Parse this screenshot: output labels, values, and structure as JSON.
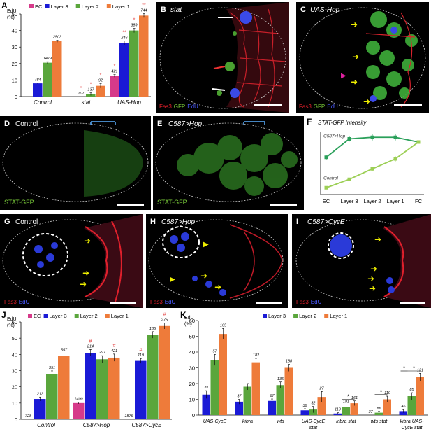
{
  "colors": {
    "ec": "#d63a8a",
    "layer3": "#1a1ad6",
    "layer2": "#5aa63c",
    "layer1": "#ee7b3a",
    "star": "#e23a3a",
    "line_hop": "#2aa05a",
    "line_ctrl": "#9ccf55",
    "fas3": "#e8202c",
    "gfp": "#7acc3a",
    "edu": "#2a3ae8"
  },
  "panels": {
    "A": "A",
    "B": "B",
    "C": "C",
    "D": "D",
    "E": "E",
    "F": "F",
    "G": "G",
    "H": "H",
    "I": "I",
    "J": "J",
    "K": "K"
  },
  "micro": {
    "B_title": "stat",
    "C_title": "UAS-Hop",
    "D_title": "Control",
    "E_title": "C587>Hop",
    "G_title": "Control",
    "H_title": "C587>Hop",
    "I_title": "C587>CycE",
    "stat_gfp": "STAT-GFP",
    "fas3": "Fas3",
    "gfp": "GFP",
    "edu": "EdU"
  },
  "chart_data": [
    {
      "id": "A",
      "type": "bar",
      "ylabel": "EdU",
      "ylabel2": "(%)",
      "ylim": [
        0,
        50
      ],
      "yticks": [
        0,
        10,
        20,
        30,
        40,
        50
      ],
      "categories": [
        "Control",
        "stat",
        "UAS-Hop"
      ],
      "series": [
        {
          "name": "EC",
          "values": [
            null,
            null,
            12.5
          ],
          "n": [
            "",
            "",
            "421"
          ],
          "err": [
            0,
            0,
            0.8
          ],
          "star": [
            "",
            "",
            "*"
          ]
        },
        {
          "name": "Layer 3",
          "values": [
            8,
            0,
            32.5
          ],
          "n": [
            "784",
            "107",
            "246"
          ],
          "err": [
            0.3,
            0,
            1.2
          ],
          "star": [
            "",
            "*",
            "**"
          ]
        },
        {
          "name": "Layer 2",
          "values": [
            20.5,
            1.5,
            40
          ],
          "n": [
            "1479",
            "137",
            "389"
          ],
          "err": [
            0.6,
            0.8,
            1.3
          ],
          "star": [
            "",
            "*",
            "*"
          ]
        },
        {
          "name": "Layer 1",
          "values": [
            33.5,
            6.5,
            49
          ],
          "n": [
            "2503",
            "92",
            "744"
          ],
          "err": [
            0.6,
            1.3,
            1.2
          ],
          "star": [
            "",
            "*",
            "**"
          ]
        }
      ]
    },
    {
      "id": "F",
      "type": "line",
      "title": "STAT-GFP Intensity",
      "categories": [
        "EC",
        "Layer 3",
        "Layer 2",
        "Layer 1",
        "FC"
      ],
      "ylim": [
        0,
        1.2
      ],
      "series": [
        {
          "name": "C587>Hop",
          "values": [
            0.71,
            1.06,
            1.09,
            1.09,
            1.0
          ],
          "err": [
            0.05,
            0.05,
            0.06,
            0.06,
            0
          ]
        },
        {
          "name": "Control",
          "values": [
            0.13,
            0.29,
            0.49,
            0.68,
            1.0
          ],
          "err": [
            0,
            0.03,
            0.04,
            0.05,
            0
          ]
        }
      ]
    },
    {
      "id": "J",
      "type": "bar",
      "ylabel": "EdU",
      "ylabel2": "(%)",
      "ylim": [
        0,
        60
      ],
      "yticks": [
        0,
        10,
        20,
        30,
        40,
        50,
        60
      ],
      "categories": [
        "Control",
        "C587>Hop",
        "C587>CycE"
      ],
      "series": [
        {
          "name": "EC",
          "values": [
            0,
            10,
            0
          ],
          "n": [
            "728",
            "1400",
            "1876"
          ],
          "err": [
            0,
            0.5,
            0
          ],
          "star": [
            "",
            "",
            ""
          ]
        },
        {
          "name": "Layer 3",
          "values": [
            12.5,
            41,
            36
          ],
          "n": [
            "213",
            "214",
            "119"
          ],
          "err": [
            1.2,
            2,
            1.5
          ],
          "star": [
            "",
            "#",
            "#"
          ]
        },
        {
          "name": "Layer 2",
          "values": [
            28,
            37,
            52
          ],
          "n": [
            "351",
            "297",
            "185"
          ],
          "err": [
            1.8,
            2.2,
            2
          ],
          "star": [
            "",
            "",
            ""
          ]
        },
        {
          "name": "Layer 1",
          "values": [
            39,
            38,
            57.5
          ],
          "n": [
            "557",
            "421",
            "275"
          ],
          "err": [
            1.8,
            2.2,
            1.8
          ],
          "star": [
            "",
            "#",
            "#"
          ]
        }
      ]
    },
    {
      "id": "K",
      "type": "bar",
      "ylabel": "EdU",
      "ylabel2": "(%)",
      "ylim": [
        0,
        60
      ],
      "yticks": [
        0,
        10,
        20,
        30,
        40,
        50,
        60
      ],
      "categories": [
        [
          "UAS-CycE"
        ],
        [
          "kibra"
        ],
        [
          "wts"
        ],
        [
          "UAS-CycE",
          "stat"
        ],
        [
          "kibra stat"
        ],
        [
          "wts stat"
        ],
        [
          "kibra UAS-",
          "CycE stat"
        ]
      ],
      "series": [
        {
          "name": "Layer 3",
          "values": [
            13,
            8.5,
            9,
            3,
            1,
            0,
            2.5
          ],
          "n": [
            "31",
            "37",
            "67",
            "38",
            "119",
            "37",
            "46"
          ],
          "err": [
            2.5,
            1.5,
            1.2,
            1,
            0.5,
            0,
            1
          ]
        },
        {
          "name": "Layer 2",
          "values": [
            35,
            18,
            19,
            3.5,
            5,
            1.5,
            12
          ],
          "n": [
            "57",
            "",
            "135",
            "32",
            "181",
            "86",
            "85"
          ],
          "err": [
            3.5,
            2,
            2,
            2,
            1.5,
            0.8,
            2.2
          ]
        },
        {
          "name": "Layer 1",
          "values": [
            51.5,
            33.5,
            30,
            11.5,
            7.5,
            10,
            24
          ],
          "n": [
            "105",
            "182",
            "188",
            "27",
            "161",
            "110",
            "121"
          ],
          "err": [
            3.5,
            2.5,
            2.2,
            3.5,
            1.5,
            2,
            2.5
          ]
        }
      ]
    }
  ]
}
